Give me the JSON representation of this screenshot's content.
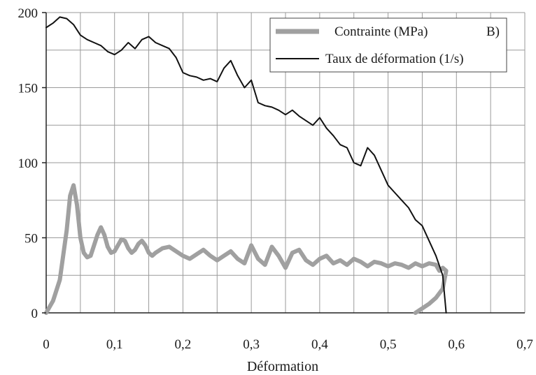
{
  "chart_data": {
    "type": "line",
    "xlabel": "Déformation",
    "ylabel": "",
    "panel_label": "B)",
    "xlim": [
      0,
      0.7
    ],
    "ylim": [
      0,
      200
    ],
    "x_ticks": [
      0,
      0.1,
      0.2,
      0.3,
      0.4,
      0.5,
      0.6,
      0.7
    ],
    "x_tick_labels": [
      "0",
      "0,1",
      "0,2",
      "0,3",
      "0,4",
      "0,5",
      "0,6",
      "0,7"
    ],
    "y_ticks": [
      0,
      50,
      100,
      150,
      200
    ],
    "y_tick_labels": [
      "0",
      "50",
      "100",
      "150",
      "200"
    ],
    "grid": true,
    "legend_position": "top-right",
    "series": [
      {
        "name": "Contrainte (MPa)",
        "color": "#a0a0a0",
        "x": [
          0.0,
          0.01,
          0.02,
          0.03,
          0.035,
          0.04,
          0.045,
          0.05,
          0.055,
          0.06,
          0.065,
          0.07,
          0.075,
          0.08,
          0.085,
          0.09,
          0.095,
          0.1,
          0.105,
          0.11,
          0.115,
          0.12,
          0.125,
          0.13,
          0.135,
          0.14,
          0.145,
          0.15,
          0.155,
          0.16,
          0.17,
          0.18,
          0.19,
          0.2,
          0.21,
          0.22,
          0.23,
          0.24,
          0.25,
          0.26,
          0.27,
          0.28,
          0.29,
          0.3,
          0.31,
          0.32,
          0.33,
          0.34,
          0.35,
          0.36,
          0.37,
          0.38,
          0.39,
          0.4,
          0.41,
          0.42,
          0.43,
          0.44,
          0.45,
          0.46,
          0.47,
          0.48,
          0.49,
          0.5,
          0.51,
          0.52,
          0.53,
          0.54,
          0.55,
          0.56,
          0.57,
          0.575,
          0.58,
          0.585,
          0.58,
          0.57,
          0.56,
          0.55,
          0.54
        ],
        "y": [
          0,
          8,
          22,
          55,
          78,
          85,
          72,
          50,
          40,
          37,
          38,
          45,
          52,
          57,
          52,
          44,
          40,
          41,
          45,
          49,
          48,
          43,
          40,
          42,
          46,
          48,
          45,
          40,
          38,
          40,
          43,
          44,
          41,
          38,
          36,
          39,
          42,
          38,
          35,
          38,
          41,
          36,
          33,
          45,
          36,
          32,
          44,
          38,
          30,
          40,
          42,
          35,
          32,
          36,
          38,
          33,
          35,
          32,
          36,
          34,
          31,
          34,
          33,
          31,
          33,
          32,
          30,
          33,
          31,
          33,
          32,
          28,
          30,
          28,
          16,
          10,
          6,
          3,
          0
        ]
      },
      {
        "name": "Taux de déformation (1/s)",
        "color": "#111111",
        "x": [
          0.0,
          0.01,
          0.02,
          0.03,
          0.04,
          0.05,
          0.06,
          0.07,
          0.08,
          0.09,
          0.1,
          0.11,
          0.12,
          0.13,
          0.14,
          0.15,
          0.16,
          0.17,
          0.18,
          0.19,
          0.2,
          0.21,
          0.22,
          0.23,
          0.24,
          0.25,
          0.26,
          0.27,
          0.28,
          0.29,
          0.3,
          0.31,
          0.32,
          0.33,
          0.34,
          0.35,
          0.36,
          0.37,
          0.38,
          0.39,
          0.4,
          0.41,
          0.42,
          0.43,
          0.44,
          0.45,
          0.46,
          0.47,
          0.48,
          0.49,
          0.5,
          0.51,
          0.52,
          0.53,
          0.54,
          0.55,
          0.56,
          0.57,
          0.58,
          0.585
        ],
        "y": [
          190,
          193,
          197,
          196,
          192,
          185,
          182,
          180,
          178,
          174,
          172,
          175,
          180,
          176,
          182,
          184,
          180,
          178,
          176,
          170,
          160,
          158,
          157,
          155,
          156,
          154,
          163,
          168,
          158,
          150,
          155,
          140,
          138,
          137,
          135,
          132,
          135,
          131,
          128,
          125,
          130,
          123,
          118,
          112,
          110,
          100,
          98,
          110,
          105,
          95,
          85,
          80,
          75,
          70,
          62,
          58,
          48,
          38,
          25,
          0
        ]
      }
    ]
  }
}
